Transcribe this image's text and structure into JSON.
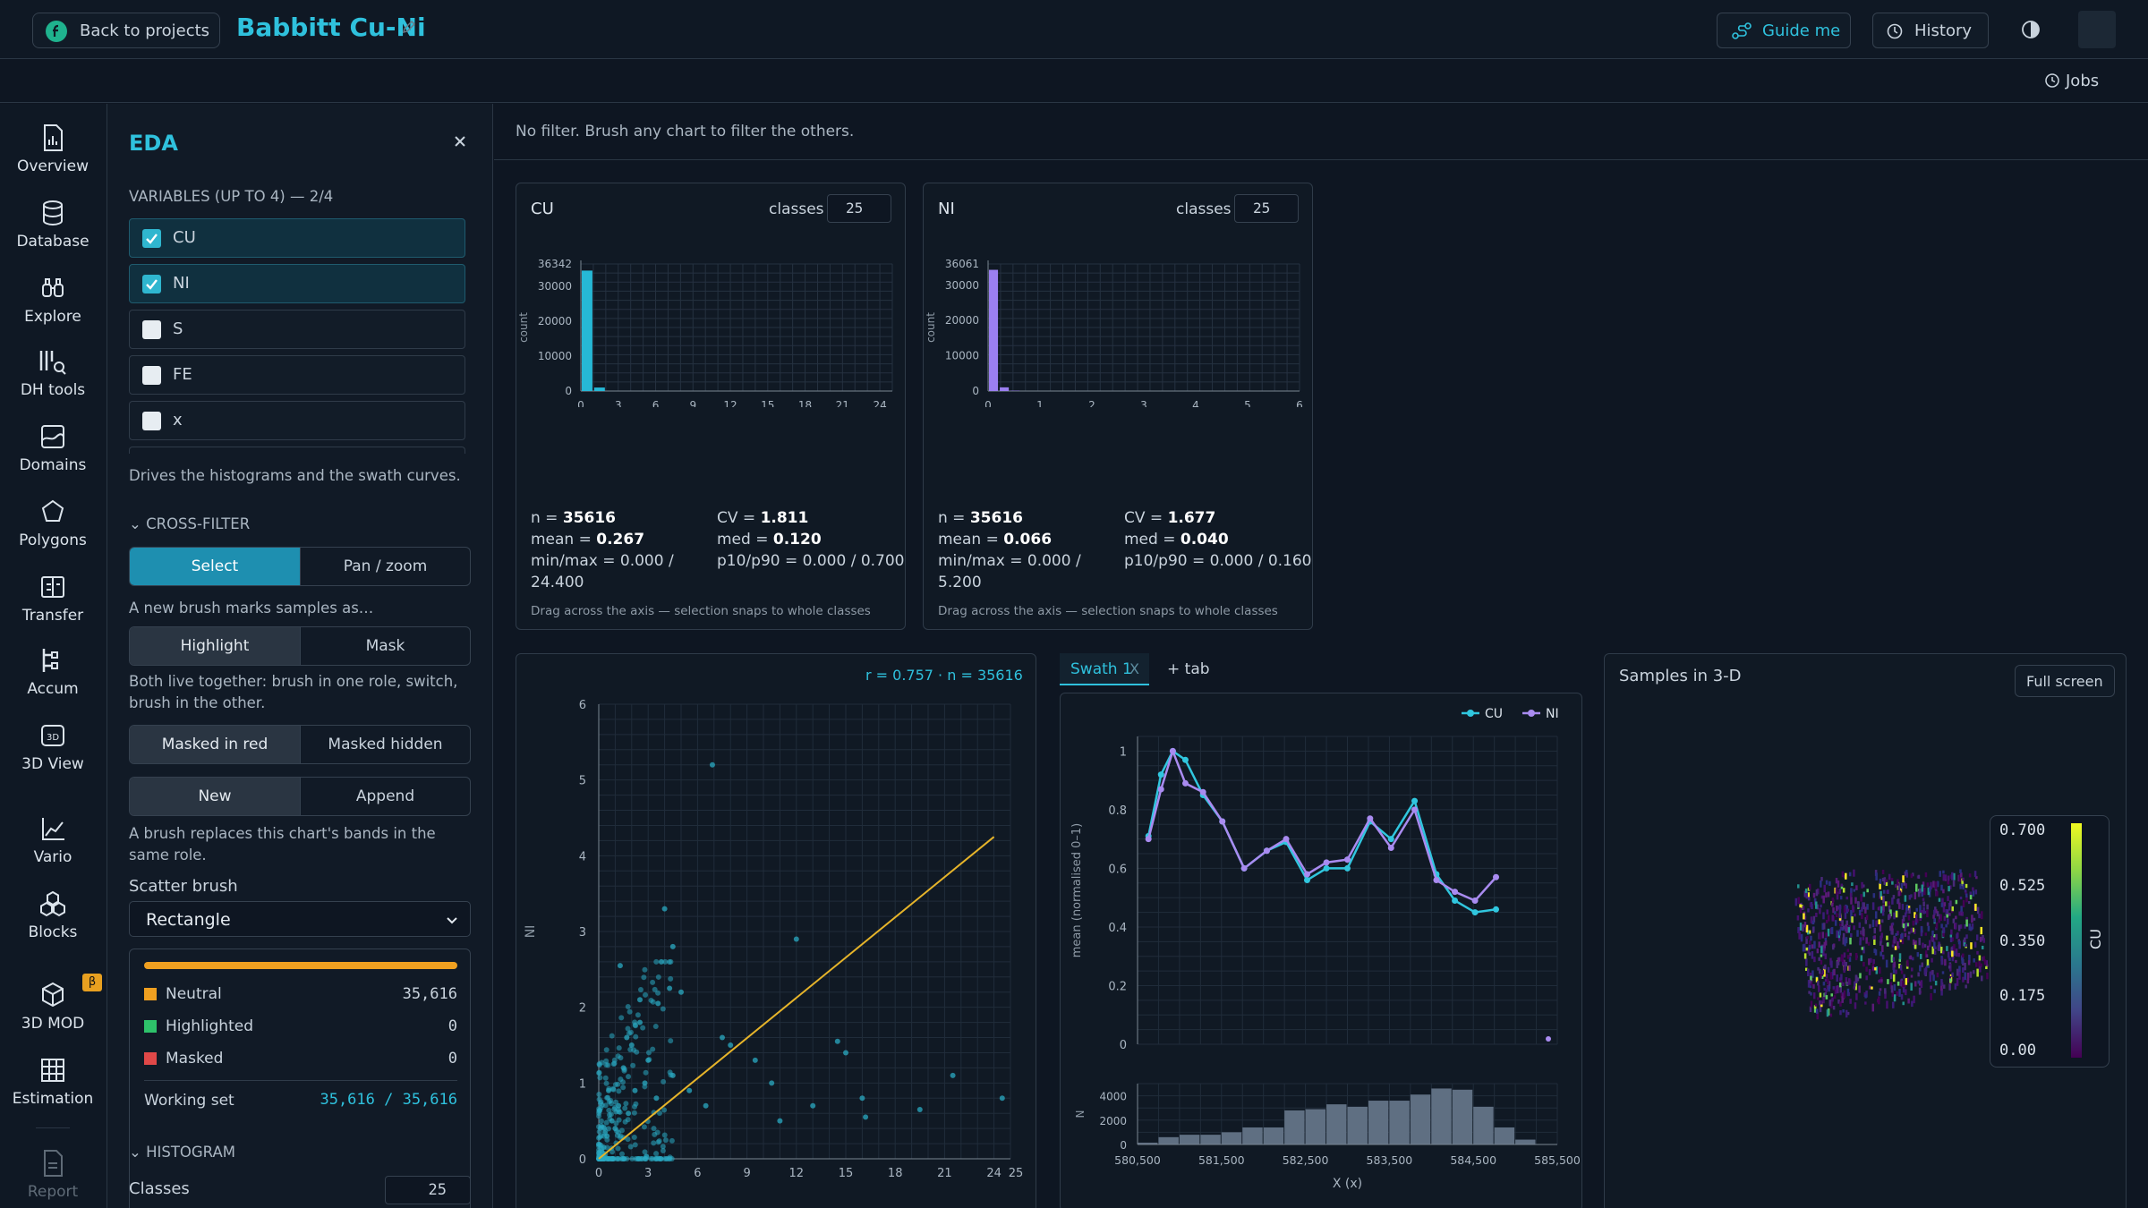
{
  "topbar": {
    "back_label": "Back to projects",
    "project_title": "Babbitt Cu-Ni",
    "guide_label": "Guide me",
    "history_label": "History",
    "jobs_label": "Jobs"
  },
  "rail": [
    {
      "label": "Overview",
      "icon": "chart-file-icon"
    },
    {
      "label": "Database",
      "icon": "database-icon"
    },
    {
      "label": "Explore",
      "icon": "binoculars-icon"
    },
    {
      "label": "DH tools",
      "icon": "drillhole-tools-icon"
    },
    {
      "label": "Domains",
      "icon": "domains-icon"
    },
    {
      "label": "Polygons",
      "icon": "pentagon-icon"
    },
    {
      "label": "Transfer",
      "icon": "transfer-icon"
    },
    {
      "label": "Accum",
      "icon": "accum-icon"
    },
    {
      "label": "3D View",
      "icon": "3d-view-icon"
    },
    {
      "label": "Vario",
      "icon": "vario-icon"
    },
    {
      "label": "Blocks",
      "icon": "blocks-icon"
    },
    {
      "label": "3D MOD",
      "icon": "3d-mod-icon",
      "badge": "β"
    },
    {
      "label": "Estimation",
      "icon": "grid-icon"
    },
    {
      "label": "Report",
      "icon": "report-icon"
    }
  ],
  "eda": {
    "title": "EDA",
    "variables_heading": "VARIABLES (UP TO 4) — 2/4",
    "variables": [
      {
        "label": "CU",
        "checked": true
      },
      {
        "label": "NI",
        "checked": true
      },
      {
        "label": "S",
        "checked": false
      },
      {
        "label": "FE",
        "checked": false
      },
      {
        "label": "x",
        "checked": false
      }
    ],
    "variables_note": "Drives the histograms and the swath curves.",
    "crossfilter_heading": "CROSS-FILTER",
    "mode_select": "Select",
    "mode_pan": "Pan / zoom",
    "brush_note": "A new brush marks samples as…",
    "highlight": "Highlight",
    "mask": "Mask",
    "both_note": "Both live together: brush in one role, switch, brush in the other.",
    "masked_red": "Masked in red",
    "masked_hidden": "Masked hidden",
    "new": "New",
    "append": "Append",
    "replace_note": "A brush replaces this chart's bands in the same role.",
    "scatter_brush_label": "Scatter brush",
    "scatter_brush_value": "Rectangle",
    "legend": [
      {
        "label": "Neutral",
        "value": "35,616",
        "color": "#f0a020"
      },
      {
        "label": "Highlighted",
        "value": "0",
        "color": "#2ec26a"
      },
      {
        "label": "Masked",
        "value": "0",
        "color": "#e04848"
      }
    ],
    "working_set_label": "Working set",
    "working_set_value": "35,616 / 35,616",
    "histogram_heading": "HISTOGRAM",
    "classes_label": "Classes",
    "classes_value": "25"
  },
  "filter_text": "No filter. Brush any chart to filter the others.",
  "hist_cu": {
    "title": "CU",
    "classes_label": "classes",
    "classes": "25",
    "ymax_label": "36342",
    "ylabel": "count",
    "yticks": [
      "30000",
      "20000",
      "10000",
      "0"
    ],
    "xticks": [
      "0",
      "3",
      "6",
      "9",
      "12",
      "15",
      "18",
      "21",
      "24"
    ],
    "n": "35616",
    "mean": "0.267",
    "minmax": "0.000 / 24.400",
    "cv": "1.811",
    "med": "0.120",
    "p10p90": "0.000 / 0.700",
    "drag_note": "Drag across the axis — selection snaps to whole classes"
  },
  "hist_ni": {
    "title": "NI",
    "classes_label": "classes",
    "classes": "25",
    "ymax_label": "36061",
    "ylabel": "count",
    "yticks": [
      "30000",
      "20000",
      "10000",
      "0"
    ],
    "xticks": [
      "0",
      "1",
      "2",
      "3",
      "4",
      "5",
      "6"
    ],
    "n": "35616",
    "mean": "0.066",
    "minmax": "0.000 / 5.200",
    "cv": "1.677",
    "med": "0.040",
    "p10p90": "0.000 / 0.160",
    "drag_note": "Drag across the axis — selection snaps to whole classes"
  },
  "scatter": {
    "stats": "r = 0.757 · n = 35616",
    "xlabel": "CU",
    "ylabel": "NI",
    "xticks": [
      "0",
      "3",
      "6",
      "9",
      "12",
      "15",
      "18",
      "21",
      "24",
      "25"
    ],
    "yticks": [
      "6",
      "5",
      "4",
      "3",
      "2",
      "1",
      "0"
    ]
  },
  "swath": {
    "tab_label": "Swath 1",
    "tab_close": "X",
    "add_tab": "+ tab",
    "ylabel": "mean (normalised 0–1)",
    "yticks": [
      "1",
      "0.8",
      "0.6",
      "0.4",
      "0.2",
      "0"
    ],
    "n_label": "N",
    "n_ticks": [
      "4000",
      "2000",
      "0"
    ],
    "xticks": [
      "580,500",
      "581,500",
      "582,500",
      "583,500",
      "584,500",
      "585,500"
    ],
    "xlabel": "X (x)",
    "legend": [
      {
        "name": "CU",
        "color": "#30c6de"
      },
      {
        "name": "NI",
        "color": "#a98bf0"
      }
    ]
  },
  "samples3d": {
    "title": "Samples in 3-D",
    "fullscreen": "Full screen",
    "colorbar_label": "CU",
    "colorbar_ticks": [
      "0.700",
      "0.525",
      "0.350",
      "0.175",
      "0.00"
    ]
  },
  "chart_data": [
    {
      "type": "bar",
      "title": "CU",
      "ylabel": "count",
      "x_range": [
        0,
        25
      ],
      "ylim": [
        0,
        36342
      ],
      "bin_width": 1,
      "bins_start": [
        0,
        1
      ],
      "values": [
        34450,
        1000
      ]
    },
    {
      "type": "bar",
      "title": "NI",
      "ylabel": "count",
      "x_range": [
        0,
        6
      ],
      "ylim": [
        0,
        36061
      ],
      "bin_width": 0.208,
      "bins_start": [
        0,
        0.208,
        0.416
      ],
      "values": [
        34400,
        1050,
        100
      ]
    },
    {
      "type": "scatter",
      "xlabel": "CU",
      "ylabel": "NI",
      "xlim": [
        0,
        25
      ],
      "ylim": [
        0,
        6
      ],
      "points": [
        [
          6.9,
          5.2
        ],
        [
          4,
          3.3
        ],
        [
          4.5,
          2.8
        ],
        [
          12,
          2.9
        ],
        [
          3.8,
          2.6
        ],
        [
          1.3,
          2.55
        ],
        [
          4.3,
          2.25
        ],
        [
          3.6,
          2.05
        ],
        [
          5,
          2.2
        ],
        [
          7.5,
          1.6
        ],
        [
          8,
          1.5
        ],
        [
          9.5,
          1.3
        ],
        [
          10.5,
          1.0
        ],
        [
          14.5,
          1.55
        ],
        [
          15,
          1.4
        ],
        [
          21.5,
          1.1
        ],
        [
          16,
          0.8
        ],
        [
          16.2,
          0.55
        ],
        [
          19.5,
          0.65
        ],
        [
          24.5,
          0.8
        ],
        [
          13,
          0.7
        ],
        [
          11,
          0.5
        ],
        [
          2.5,
          1.8
        ],
        [
          2,
          1.5
        ],
        [
          3,
          1.3
        ],
        [
          1.5,
          1.2
        ],
        [
          2.2,
          0.9
        ],
        [
          3.5,
          0.8
        ],
        [
          1.2,
          0.7
        ],
        [
          0.8,
          0.5
        ],
        [
          1,
          0.4
        ],
        [
          0.5,
          0.3
        ],
        [
          0.3,
          0.15
        ],
        [
          1.8,
          0.6
        ],
        [
          2.8,
          1.0
        ],
        [
          4.5,
          1.1
        ],
        [
          5.5,
          0.9
        ],
        [
          6.5,
          0.7
        ],
        [
          0.6,
          0.9
        ],
        [
          1.7,
          1.6
        ],
        [
          2.5,
          2.1
        ]
      ],
      "regression": [
        [
          0,
          0
        ],
        [
          24,
          4.25
        ]
      ]
    },
    {
      "type": "line",
      "title": "Swath 1",
      "ylabel": "mean (normalised 0–1)",
      "xlabel": "X (x)",
      "xlim": [
        580500,
        585500
      ],
      "ylim": [
        0,
        1
      ],
      "series": [
        {
          "name": "CU",
          "x": [
            580630,
            580780,
            580920,
            581070,
            581280,
            581510,
            581770,
            582040,
            582270,
            582520,
            582750,
            583000,
            583270,
            583520,
            583800,
            584060,
            584280,
            584520,
            584770
          ],
          "values": [
            0.71,
            0.92,
            1.0,
            0.97,
            0.85,
            0.76,
            0.6,
            0.66,
            0.69,
            0.56,
            0.6,
            0.6,
            0.76,
            0.7,
            0.83,
            0.58,
            0.49,
            0.45,
            0.46
          ]
        },
        {
          "name": "NI",
          "x": [
            580630,
            580780,
            580920,
            581070,
            581280,
            581510,
            581770,
            582040,
            582270,
            582520,
            582750,
            583000,
            583270,
            583520,
            583800,
            584060,
            584280,
            584520,
            584770
          ],
          "values": [
            0.7,
            0.87,
            1.0,
            0.89,
            0.86,
            0.76,
            0.6,
            0.66,
            0.7,
            0.58,
            0.62,
            0.63,
            0.77,
            0.67,
            0.8,
            0.56,
            0.52,
            0.49,
            0.57
          ]
        }
      ]
    },
    {
      "type": "bar",
      "title": "N",
      "xlim": [
        580500,
        585500
      ],
      "ylim": [
        0,
        5000
      ],
      "bin_width": 250,
      "bins_start": [
        580500,
        580750,
        581000,
        581250,
        581500,
        581750,
        582000,
        582250,
        582500,
        582750,
        583000,
        583250,
        583500,
        583750,
        584000,
        584250,
        584500,
        584750,
        585000
      ],
      "values": [
        150,
        600,
        800,
        800,
        1000,
        1400,
        1400,
        2800,
        2900,
        3300,
        3100,
        3600,
        3600,
        4100,
        4600,
        4500,
        3100,
        1400,
        400
      ]
    }
  ]
}
